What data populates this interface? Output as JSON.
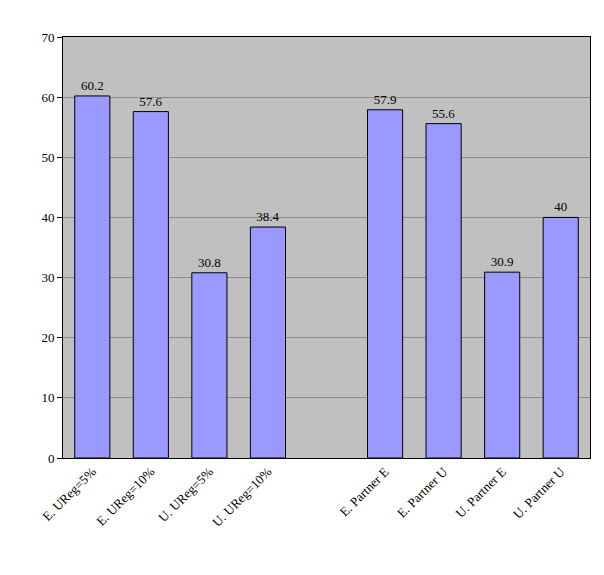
{
  "chart_data": {
    "type": "bar",
    "categories": [
      "E. UReg=5%",
      "E. UReg=10%",
      "U. UReg=5%",
      "U. UReg=10%",
      null,
      "E. Partner E",
      "E. Partner U",
      "U. Partner E",
      "U. Partner U"
    ],
    "values": [
      60.2,
      57.6,
      30.8,
      38.4,
      null,
      57.9,
      55.6,
      30.9,
      40
    ],
    "color": "#9999ff",
    "ylim": [
      0,
      70
    ],
    "yticks": [
      0,
      10,
      20,
      30,
      40,
      50,
      60,
      70
    ],
    "grid": true,
    "data_labels": true
  }
}
